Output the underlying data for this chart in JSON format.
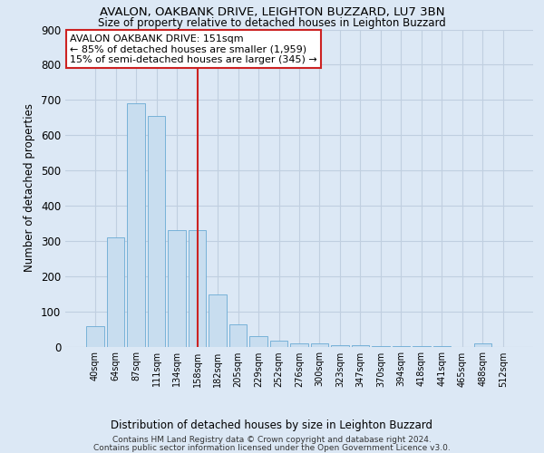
{
  "title1": "AVALON, OAKBANK DRIVE, LEIGHTON BUZZARD, LU7 3BN",
  "title2": "Size of property relative to detached houses in Leighton Buzzard",
  "xlabel": "Distribution of detached houses by size in Leighton Buzzard",
  "ylabel": "Number of detached properties",
  "footnote1": "Contains HM Land Registry data © Crown copyright and database right 2024.",
  "footnote2": "Contains public sector information licensed under the Open Government Licence v3.0.",
  "annotation_title": "AVALON OAKBANK DRIVE: 151sqm",
  "annotation_line1": "← 85% of detached houses are smaller (1,959)",
  "annotation_line2": "15% of semi-detached houses are larger (345) →",
  "bar_color": "#c8ddef",
  "bar_edge_color": "#6aaad4",
  "highlight_color": "#cc2222",
  "bg_color": "#dce8f5",
  "grid_color": "#c0cfe0",
  "categories": [
    "40sqm",
    "64sqm",
    "87sqm",
    "111sqm",
    "134sqm",
    "158sqm",
    "182sqm",
    "205sqm",
    "229sqm",
    "252sqm",
    "276sqm",
    "300sqm",
    "323sqm",
    "347sqm",
    "370sqm",
    "394sqm",
    "418sqm",
    "441sqm",
    "465sqm",
    "488sqm",
    "512sqm"
  ],
  "values": [
    57,
    310,
    690,
    655,
    330,
    330,
    148,
    63,
    30,
    18,
    10,
    8,
    5,
    3,
    2,
    2,
    1,
    1,
    0,
    10,
    0
  ],
  "highlight_index": 5,
  "ylim": [
    0,
    900
  ],
  "yticks": [
    0,
    100,
    200,
    300,
    400,
    500,
    600,
    700,
    800,
    900
  ]
}
